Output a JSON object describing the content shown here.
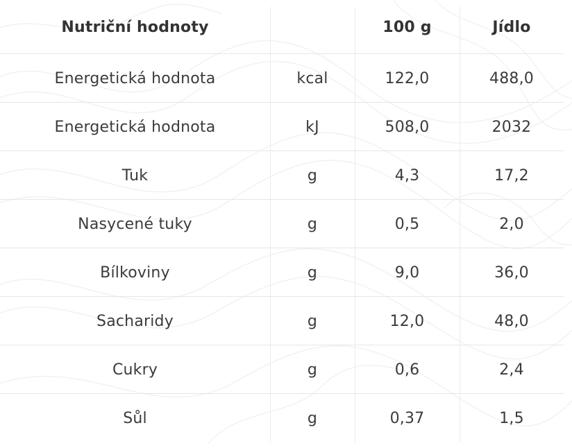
{
  "table": {
    "headers": {
      "name": "Nutriční hodnoty",
      "unit": "",
      "per100": "100 g",
      "meal": "Jídlo"
    },
    "rows": [
      {
        "name": "Energetická hodnota",
        "unit": "kcal",
        "per100": "122,0",
        "meal": "488,0"
      },
      {
        "name": "Energetická hodnota",
        "unit": "kJ",
        "per100": "508,0",
        "meal": "2032"
      },
      {
        "name": "Tuk",
        "unit": "g",
        "per100": "4,3",
        "meal": "17,2"
      },
      {
        "name": "Nasycené tuky",
        "unit": "g",
        "per100": "0,5",
        "meal": "2,0"
      },
      {
        "name": "Bílkoviny",
        "unit": "g",
        "per100": "9,0",
        "meal": "36,0"
      },
      {
        "name": "Sacharidy",
        "unit": "g",
        "per100": "12,0",
        "meal": "48,0"
      },
      {
        "name": "Cukry",
        "unit": "g",
        "per100": "0,6",
        "meal": "2,4"
      },
      {
        "name": "Sůl",
        "unit": "g",
        "per100": "0,37",
        "meal": "1,5"
      }
    ]
  },
  "colors": {
    "text": "#3b3b3b",
    "grid": "#e6e6e6",
    "background": "#ffffff"
  }
}
